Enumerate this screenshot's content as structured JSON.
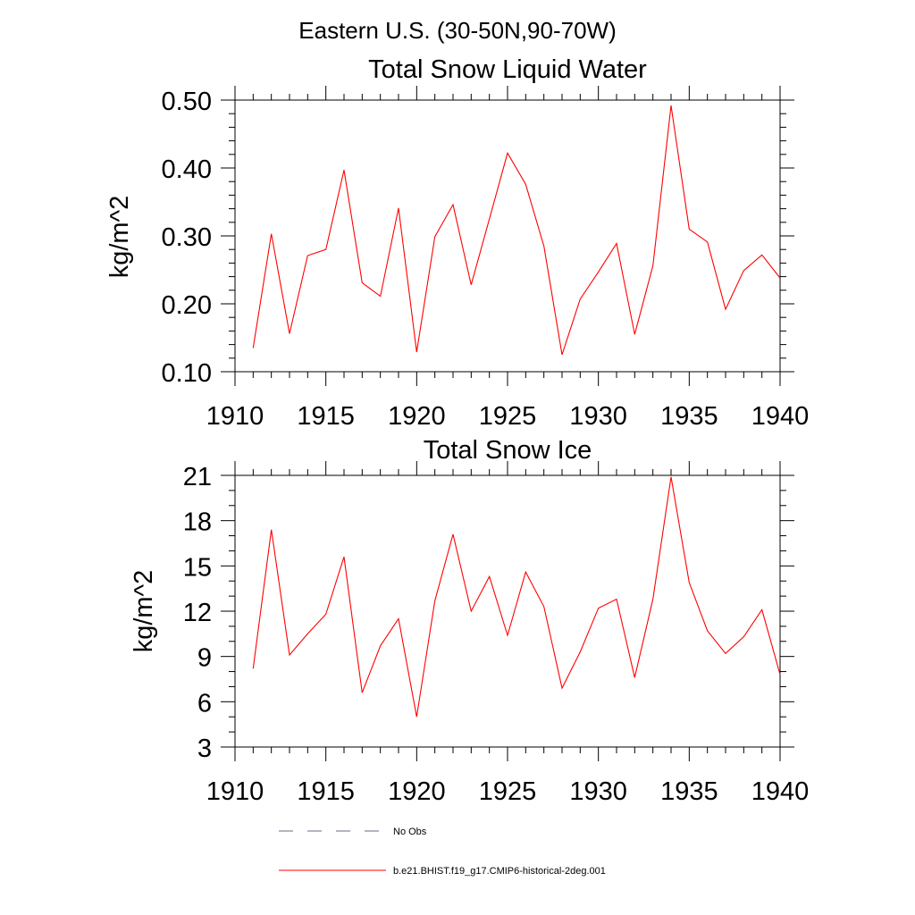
{
  "figure": {
    "suptitle": "Eastern U.S. (30-50N,90-70W)"
  },
  "chart_data": [
    {
      "type": "line",
      "title": "Total Snow Liquid Water",
      "xlabel": "",
      "ylabel": "kg/m^2",
      "xlim": [
        1910,
        1940
      ],
      "ylim": [
        0.1,
        0.5
      ],
      "x_ticks": [
        "1910",
        "1915",
        "1920",
        "1925",
        "1930",
        "1935",
        "1940"
      ],
      "y_ticks": [
        "0.10",
        "0.20",
        "0.30",
        "0.40",
        "0.50"
      ],
      "grid": false,
      "x": [
        1911,
        1912,
        1913,
        1914,
        1915,
        1916,
        1917,
        1918,
        1919,
        1920,
        1921,
        1922,
        1923,
        1924,
        1925,
        1926,
        1927,
        1928,
        1929,
        1930,
        1931,
        1932,
        1933,
        1934,
        1935,
        1936,
        1937,
        1938,
        1939,
        1940
      ],
      "series": [
        {
          "name": "b.e21.BHIST.f19_g17.CMIP6-historical-2deg.001",
          "color": "#ff0000",
          "values": [
            0.135,
            0.303,
            0.156,
            0.271,
            0.28,
            0.397,
            0.231,
            0.211,
            0.341,
            0.129,
            0.299,
            0.346,
            0.228,
            0.325,
            0.422,
            0.376,
            0.285,
            0.125,
            0.207,
            0.247,
            0.289,
            0.155,
            0.256,
            0.492,
            0.31,
            0.291,
            0.192,
            0.249,
            0.272,
            0.238
          ]
        }
      ]
    },
    {
      "type": "line",
      "title": "Total Snow Ice",
      "xlabel": "",
      "ylabel": "kg/m^2",
      "xlim": [
        1910,
        1940
      ],
      "ylim": [
        3,
        21
      ],
      "x_ticks": [
        "1910",
        "1915",
        "1920",
        "1925",
        "1930",
        "1935",
        "1940"
      ],
      "y_ticks": [
        "3",
        "6",
        "9",
        "12",
        "15",
        "18",
        "21"
      ],
      "grid": false,
      "x": [
        1911,
        1912,
        1913,
        1914,
        1915,
        1916,
        1917,
        1918,
        1919,
        1920,
        1921,
        1922,
        1923,
        1924,
        1925,
        1926,
        1927,
        1928,
        1929,
        1930,
        1931,
        1932,
        1933,
        1934,
        1935,
        1936,
        1937,
        1938,
        1939,
        1940
      ],
      "series": [
        {
          "name": "b.e21.BHIST.f19_g17.CMIP6-historical-2deg.001",
          "color": "#ff0000",
          "values": [
            8.2,
            17.4,
            9.1,
            10.5,
            11.8,
            15.6,
            6.6,
            9.7,
            11.5,
            5.0,
            12.7,
            17.1,
            12.0,
            14.3,
            10.4,
            14.6,
            12.3,
            6.9,
            9.3,
            12.2,
            12.8,
            7.6,
            12.8,
            20.9,
            13.9,
            10.7,
            9.2,
            10.3,
            12.1,
            7.8
          ]
        }
      ]
    }
  ],
  "legend": {
    "items": [
      {
        "label": "No Obs",
        "color": "#6a6a8a",
        "style": "dashed"
      },
      {
        "label": "b.e21.BHIST.f19_g17.CMIP6-historical-2deg.001",
        "color": "#ff0000",
        "style": "solid"
      }
    ]
  }
}
